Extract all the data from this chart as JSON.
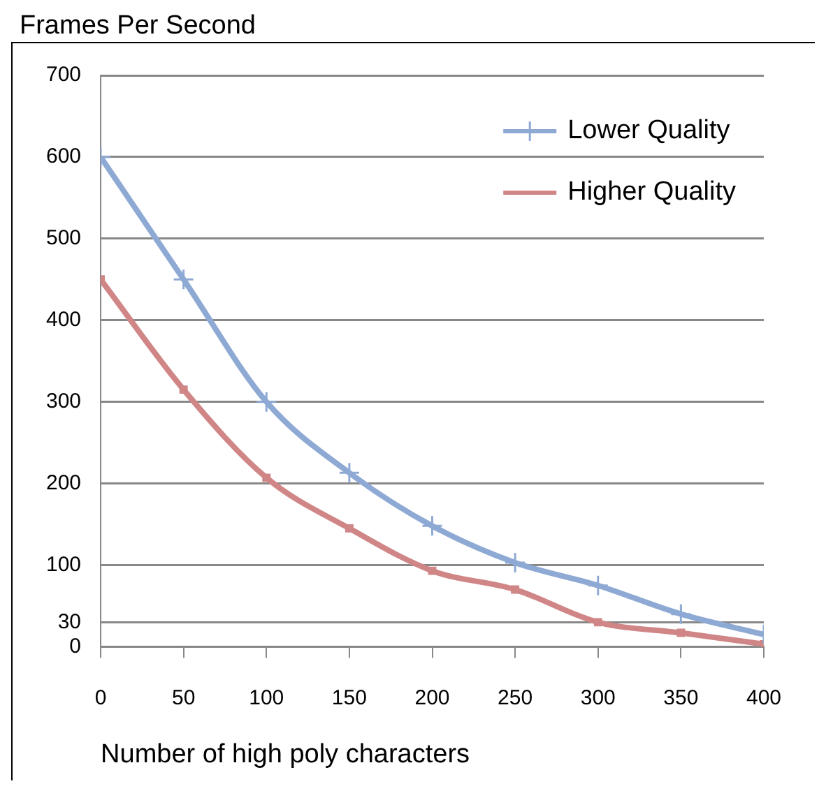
{
  "chart_data": {
    "type": "line",
    "ylabel": "Frames Per Second",
    "xlabel": "Number of high poly characters",
    "x": [
      0,
      50,
      100,
      150,
      200,
      250,
      300,
      350,
      400
    ],
    "series": [
      {
        "name": "Lower Quality",
        "color": "#8eaad4",
        "marker": "cross",
        "values": [
          600,
          450,
          300,
          213,
          148,
          103,
          75,
          40,
          15
        ]
      },
      {
        "name": "Higher Quality",
        "color": "#d08686",
        "marker": "square",
        "values": [
          450,
          315,
          207,
          145,
          93,
          70,
          30,
          17,
          3
        ]
      }
    ],
    "xlim": [
      0,
      400
    ],
    "xticks": [
      0,
      50,
      100,
      150,
      200,
      250,
      300,
      350,
      400
    ],
    "ylim": [
      0,
      700
    ],
    "yticks": [
      0,
      30,
      100,
      200,
      300,
      400,
      500,
      600,
      700
    ],
    "grid": "y",
    "legend": "top right"
  }
}
